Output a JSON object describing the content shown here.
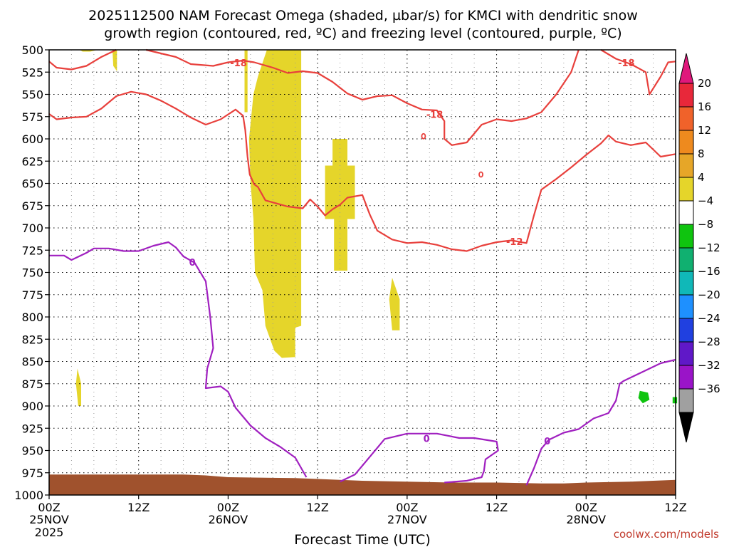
{
  "title": {
    "line1": "2025112500 NAM Forecast Omega (shaded, µbar/s) for KMCI with dendritic snow",
    "line2": "growth region (contoured, red, ºC) and freezing level (contoured, purple, ºC)"
  },
  "credit": "coolwx.com/models",
  "chart_data": {
    "type": "heatmap",
    "xlabel": "Forecast Time (UTC)",
    "ylabel": "",
    "x_range_hours": [
      0,
      84
    ],
    "y_range_hpa": [
      500,
      1000
    ],
    "y_ticks": [
      500,
      525,
      550,
      575,
      600,
      625,
      650,
      675,
      700,
      725,
      750,
      775,
      800,
      825,
      850,
      875,
      900,
      925,
      950,
      975,
      1000
    ],
    "x_ticks": [
      {
        "hour": 0,
        "label": "00Z",
        "sub1": "25NOV",
        "sub2": "2025"
      },
      {
        "hour": 12,
        "label": "12Z",
        "sub1": "",
        "sub2": ""
      },
      {
        "hour": 24,
        "label": "00Z",
        "sub1": "26NOV",
        "sub2": ""
      },
      {
        "hour": 36,
        "label": "12Z",
        "sub1": "",
        "sub2": ""
      },
      {
        "hour": 48,
        "label": "00Z",
        "sub1": "27NOV",
        "sub2": ""
      },
      {
        "hour": 60,
        "label": "12Z",
        "sub1": "",
        "sub2": ""
      },
      {
        "hour": 72,
        "label": "00Z",
        "sub1": "28NOV",
        "sub2": ""
      },
      {
        "hour": 84,
        "label": "12Z",
        "sub1": "",
        "sub2": ""
      }
    ],
    "grid": true,
    "colorbar": {
      "levels": [
        20,
        16,
        12,
        8,
        4,
        -4,
        -8,
        -12,
        -16,
        -20,
        -24,
        -28,
        -32,
        -36
      ],
      "colors": [
        "#e8283a",
        "#f0622a",
        "#ee8a1e",
        "#e6a628",
        "#e5d52a",
        "#ffffff",
        "#0fc40f",
        "#10b070",
        "#10b8b8",
        "#1e90ff",
        "#2040e0",
        "#6018c8",
        "#9a14c8",
        "#a0a0a0"
      ],
      "top_arrow_color": "#e0187c",
      "bottom_arrow_color": "#000000"
    },
    "omega_regions": [
      {
        "color": "#e5d52a",
        "points": [
          [
            8.5,
            500
          ],
          [
            9.1,
            500
          ],
          [
            9.1,
            524
          ],
          [
            8.6,
            518
          ]
        ]
      },
      {
        "color": "#e5d52a",
        "points": [
          [
            4.1,
            500
          ],
          [
            6.5,
            500
          ],
          [
            5.5,
            502
          ],
          [
            4.5,
            502
          ]
        ]
      },
      {
        "color": "#e5d52a",
        "points": [
          [
            26.2,
            500
          ],
          [
            26.6,
            500
          ],
          [
            26.6,
            570
          ],
          [
            26.2,
            570
          ]
        ]
      },
      {
        "color": "#e5d52a",
        "points": [
          [
            29.2,
            500
          ],
          [
            33.8,
            500
          ],
          [
            33.8,
            810
          ],
          [
            33.0,
            812
          ],
          [
            33.0,
            845
          ],
          [
            31.2,
            846
          ],
          [
            30.2,
            838
          ],
          [
            29.0,
            810
          ],
          [
            28.6,
            770
          ],
          [
            27.6,
            750
          ],
          [
            27.4,
            690
          ],
          [
            27.0,
            650
          ],
          [
            26.8,
            600
          ],
          [
            27.4,
            550
          ],
          [
            28.0,
            530
          ]
        ]
      },
      {
        "color": "#e5d52a",
        "points": [
          [
            38.0,
            600
          ],
          [
            40.0,
            600
          ],
          [
            40.0,
            630
          ],
          [
            41.0,
            630
          ],
          [
            41.0,
            690
          ],
          [
            40.0,
            690
          ],
          [
            40.0,
            748
          ],
          [
            38.2,
            748
          ],
          [
            38.2,
            690
          ],
          [
            37.0,
            690
          ],
          [
            37.0,
            630
          ],
          [
            38.0,
            630
          ]
        ]
      },
      {
        "color": "#e5d52a",
        "points": [
          [
            46.0,
            756
          ],
          [
            47.0,
            780
          ],
          [
            47.0,
            815
          ],
          [
            46.0,
            815
          ],
          [
            45.6,
            780
          ]
        ]
      },
      {
        "color": "#e5d52a",
        "points": [
          [
            3.8,
            858
          ],
          [
            4.3,
            875
          ],
          [
            4.3,
            900
          ],
          [
            3.9,
            900
          ],
          [
            3.6,
            875
          ]
        ]
      },
      {
        "color": "#0fc40f",
        "points": [
          [
            79.2,
            883
          ],
          [
            80.3,
            885
          ],
          [
            80.5,
            893
          ],
          [
            79.6,
            897
          ],
          [
            79.0,
            891
          ]
        ]
      },
      {
        "color": "#0fc40f",
        "points": [
          [
            83.6,
            890
          ],
          [
            84.2,
            890
          ],
          [
            84.2,
            897
          ],
          [
            83.6,
            897
          ]
        ]
      }
    ],
    "terrain_color": "#a0522d",
    "terrain_top": [
      [
        0,
        977
      ],
      [
        9,
        977
      ],
      [
        18,
        977
      ],
      [
        21,
        978
      ],
      [
        24,
        980
      ],
      [
        33,
        981
      ],
      [
        42,
        984
      ],
      [
        48,
        985
      ],
      [
        54,
        986
      ],
      [
        60,
        986
      ],
      [
        66,
        987
      ],
      [
        69,
        987
      ],
      [
        72,
        986
      ],
      [
        78,
        985
      ],
      [
        84,
        983
      ]
    ],
    "contour_series": [
      {
        "color": "#e8403c",
        "level": -18,
        "points": [
          [
            0,
            513
          ],
          [
            1,
            520
          ],
          [
            3,
            522
          ],
          [
            5,
            518
          ],
          [
            7,
            508
          ],
          [
            9,
            500
          ]
        ]
      },
      {
        "color": "#e8403c",
        "level": -18,
        "points": [
          [
            13,
            500
          ],
          [
            17,
            508
          ],
          [
            19,
            516
          ],
          [
            22,
            518
          ],
          [
            24,
            514
          ],
          [
            26,
            512
          ],
          [
            27.5,
            514
          ],
          [
            30,
            520
          ],
          [
            32,
            526
          ],
          [
            34,
            524
          ],
          [
            36,
            526
          ],
          [
            38,
            536
          ],
          [
            40,
            549
          ],
          [
            42,
            556
          ],
          [
            44,
            552
          ],
          [
            46,
            551
          ],
          [
            48,
            560
          ],
          [
            50,
            567
          ],
          [
            52,
            568
          ],
          [
            53,
            580
          ],
          [
            53,
            600
          ],
          [
            54,
            607
          ],
          [
            56,
            604
          ],
          [
            58,
            584
          ],
          [
            60,
            578
          ],
          [
            62,
            580
          ],
          [
            64,
            577
          ],
          [
            66,
            570
          ],
          [
            68,
            550
          ],
          [
            70,
            525
          ],
          [
            71,
            500
          ]
        ]
      },
      {
        "color": "#e8403c",
        "level": -18,
        "points": [
          [
            74,
            500
          ],
          [
            76,
            510
          ],
          [
            78,
            516
          ],
          [
            80,
            525
          ],
          [
            80.5,
            550
          ],
          [
            82,
            530
          ],
          [
            83,
            514
          ],
          [
            84,
            513
          ]
        ]
      },
      {
        "color": "#e8403c",
        "level": -12,
        "points": [
          [
            0,
            572
          ],
          [
            1,
            578
          ],
          [
            3,
            576
          ],
          [
            5,
            575
          ],
          [
            7,
            566
          ],
          [
            9,
            552
          ],
          [
            11,
            547
          ],
          [
            13,
            550
          ],
          [
            15,
            557
          ],
          [
            17,
            566
          ],
          [
            19,
            576
          ],
          [
            21,
            584
          ],
          [
            23,
            578
          ],
          [
            25,
            567
          ],
          [
            26,
            574
          ],
          [
            26.3,
            590
          ],
          [
            26.6,
            620
          ],
          [
            26.9,
            640
          ],
          [
            27.5,
            651
          ],
          [
            28,
            654
          ],
          [
            29,
            669
          ],
          [
            32,
            676
          ],
          [
            34,
            678
          ],
          [
            35,
            668
          ],
          [
            36,
            676
          ],
          [
            37,
            686
          ],
          [
            38,
            679
          ],
          [
            39,
            674
          ],
          [
            40,
            666
          ],
          [
            42,
            663
          ],
          [
            43,
            685
          ],
          [
            44,
            703
          ],
          [
            46,
            713
          ],
          [
            48,
            717
          ],
          [
            50,
            716
          ],
          [
            52,
            719
          ],
          [
            54,
            724
          ],
          [
            56,
            726
          ],
          [
            58,
            720
          ],
          [
            60,
            716
          ],
          [
            62,
            714
          ],
          [
            64,
            717
          ],
          [
            65,
            686
          ],
          [
            66,
            657
          ],
          [
            68,
            645
          ],
          [
            70,
            632
          ],
          [
            72,
            618
          ],
          [
            74,
            605
          ],
          [
            75,
            596
          ],
          [
            76,
            603
          ],
          [
            78,
            607
          ],
          [
            80,
            604
          ],
          [
            81,
            612
          ],
          [
            82,
            620
          ],
          [
            84,
            617
          ]
        ]
      },
      {
        "color": "#a020c0",
        "level": 0,
        "points": [
          [
            0,
            731
          ],
          [
            2,
            731
          ],
          [
            3,
            736
          ],
          [
            5,
            728
          ],
          [
            6,
            723
          ],
          [
            8,
            723
          ],
          [
            10,
            726
          ],
          [
            12,
            726
          ],
          [
            14,
            720
          ],
          [
            16,
            716
          ],
          [
            17,
            722
          ],
          [
            18,
            732
          ],
          [
            19.5,
            739
          ],
          [
            21,
            760
          ],
          [
            21.6,
            800
          ],
          [
            22,
            835
          ],
          [
            21.2,
            858
          ],
          [
            21,
            880
          ],
          [
            23,
            878
          ],
          [
            24,
            884
          ],
          [
            25,
            902
          ],
          [
            27,
            922
          ],
          [
            29,
            936
          ],
          [
            31,
            946
          ],
          [
            33,
            958
          ],
          [
            34.5,
            980
          ]
        ]
      },
      {
        "color": "#a020c0",
        "level": 0,
        "points": [
          [
            39,
            985
          ],
          [
            41,
            977
          ],
          [
            43,
            957
          ],
          [
            45,
            937
          ],
          [
            48,
            931
          ],
          [
            52,
            931
          ],
          [
            55,
            936
          ],
          [
            57,
            936
          ],
          [
            60,
            940
          ],
          [
            60.2,
            950
          ],
          [
            58.5,
            960
          ],
          [
            58.3,
            973
          ],
          [
            58,
            980
          ],
          [
            56,
            984
          ],
          [
            53,
            986
          ]
        ]
      },
      {
        "color": "#a020c0",
        "level": 0,
        "points": [
          [
            64,
            989
          ],
          [
            65,
            970
          ],
          [
            66,
            948
          ],
          [
            67,
            938
          ],
          [
            69,
            930
          ],
          [
            71,
            926
          ],
          [
            73,
            914
          ],
          [
            75,
            908
          ],
          [
            76,
            894
          ],
          [
            76.5,
            875
          ],
          [
            77,
            872
          ],
          [
            78,
            868
          ],
          [
            80,
            860
          ],
          [
            82,
            852
          ],
          [
            84,
            848
          ]
        ]
      }
    ],
    "contour_labels": [
      {
        "text": "-18",
        "x": 25.4,
        "y": 515,
        "color": "#e8403c"
      },
      {
        "text": "-18",
        "x": 51.7,
        "y": 573,
        "color": "#e8403c"
      },
      {
        "text": "-18",
        "x": 77.4,
        "y": 515,
        "color": "#e8403c"
      },
      {
        "text": "-12",
        "x": 62.4,
        "y": 716,
        "color": "#e8403c"
      },
      {
        "text": "0",
        "x": 19.2,
        "y": 739,
        "color": "#a020c0"
      },
      {
        "text": "0",
        "x": 50.6,
        "y": 937,
        "color": "#a020c0"
      },
      {
        "text": "0",
        "x": 66.8,
        "y": 940,
        "color": "#a020c0"
      }
    ],
    "small_contours": [
      {
        "x": 50.2,
        "y": 597,
        "color": "#e8403c"
      },
      {
        "x": 57.9,
        "y": 640,
        "color": "#e8403c"
      }
    ]
  }
}
